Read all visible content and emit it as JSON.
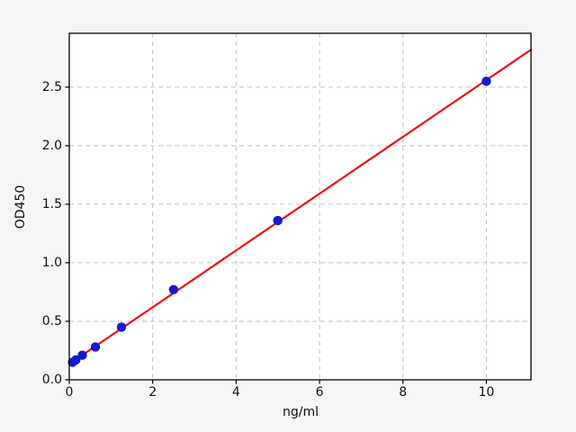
{
  "figure": {
    "background": "#f5f5f5"
  },
  "chart_data": {
    "type": "scatter",
    "title": "",
    "xlabel": "ng/ml",
    "ylabel": "OD450",
    "xlim": [
      0,
      11.07
    ],
    "ylim": [
      0,
      2.96
    ],
    "grid": {
      "on": true,
      "style": "dashed",
      "color": "#c3c3c3"
    },
    "legend": {
      "visible": false
    },
    "xticks": {
      "values": [
        0,
        2,
        4,
        6,
        8,
        10
      ],
      "labels": [
        "0",
        "2",
        "4",
        "6",
        "8",
        "10"
      ]
    },
    "yticks": {
      "values": [
        0,
        0.5,
        1.0,
        1.5,
        2.0,
        2.5
      ],
      "labels": [
        "0.0",
        "0.5",
        "1.0",
        "1.5",
        "2.0",
        "2.5"
      ]
    },
    "series": [
      {
        "name": "standard-points",
        "type": "scatter",
        "marker": "circle",
        "marker_color": "#1818cf",
        "points": [
          [
            0.078,
            0.15
          ],
          [
            0.156,
            0.17
          ],
          [
            0.312,
            0.21
          ],
          [
            0.625,
            0.28
          ],
          [
            1.25,
            0.45
          ],
          [
            2.5,
            0.77
          ],
          [
            5,
            1.36
          ],
          [
            10,
            2.55
          ]
        ]
      },
      {
        "name": "linear-fit",
        "type": "line",
        "line_color": "#ee1111",
        "x": [
          0,
          11.07
        ],
        "y": [
          0.135,
          2.82
        ]
      }
    ],
    "colors": {
      "plot_bg": "#ffffff",
      "spine": "#000000",
      "tick_text": "#111111"
    }
  }
}
